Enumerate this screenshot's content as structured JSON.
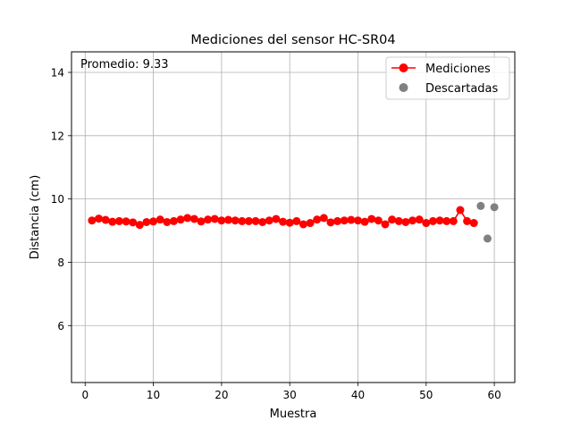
{
  "chart_data": {
    "type": "line",
    "title": "Mediciones del sensor HC-SR04",
    "xlabel": "Muestra",
    "ylabel": "Distancia (cm)",
    "xlim": [
      -2,
      63
    ],
    "ylim": [
      4.2,
      14.65
    ],
    "xticks": [
      0,
      10,
      20,
      30,
      40,
      50,
      60
    ],
    "yticks": [
      6,
      8,
      10,
      12,
      14
    ],
    "grid": true,
    "legend_position": "top-right",
    "annotation": "Promedio: 9.33",
    "series": [
      {
        "name": "Mediciones",
        "style": "line-marker",
        "color": "#ff0000",
        "x": [
          1,
          2,
          3,
          4,
          5,
          6,
          7,
          8,
          9,
          10,
          11,
          12,
          13,
          14,
          15,
          16,
          17,
          18,
          19,
          20,
          21,
          22,
          23,
          24,
          25,
          26,
          27,
          28,
          29,
          30,
          31,
          32,
          33,
          34,
          35,
          36,
          37,
          38,
          39,
          40,
          41,
          42,
          43,
          44,
          45,
          46,
          47,
          48,
          49,
          50,
          51,
          52,
          53,
          54,
          55,
          56,
          57
        ],
        "y": [
          9.32,
          9.38,
          9.34,
          9.28,
          9.3,
          9.29,
          9.26,
          9.18,
          9.27,
          9.29,
          9.35,
          9.27,
          9.3,
          9.35,
          9.4,
          9.37,
          9.29,
          9.35,
          9.37,
          9.32,
          9.34,
          9.32,
          9.3,
          9.3,
          9.3,
          9.27,
          9.32,
          9.37,
          9.28,
          9.25,
          9.3,
          9.2,
          9.24,
          9.35,
          9.4,
          9.26,
          9.3,
          9.32,
          9.34,
          9.32,
          9.28,
          9.37,
          9.32,
          9.2,
          9.35,
          9.3,
          9.27,
          9.32,
          9.35,
          9.24,
          9.3,
          9.32,
          9.3,
          9.3,
          9.65,
          9.3,
          9.24
        ]
      },
      {
        "name": "Descartadas",
        "style": "marker",
        "color": "#808080",
        "x": [
          58,
          59,
          60
        ],
        "y": [
          9.78,
          8.75,
          9.74
        ]
      }
    ]
  }
}
